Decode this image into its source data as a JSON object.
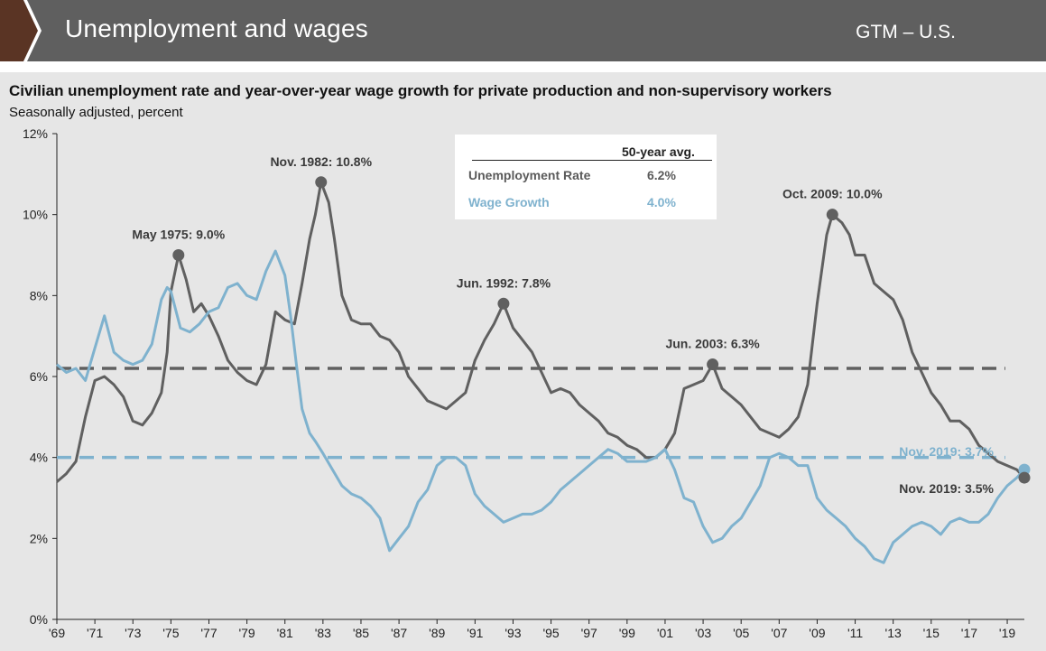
{
  "header": {
    "title": "Unemployment and wages",
    "tag": "GTM – U.S."
  },
  "colors": {
    "unemployment": "#606060",
    "wage": "#7fb2ce",
    "banner": "#5f5f5f",
    "arrow": "#5a3424",
    "panel": "#e6e6e6"
  },
  "legend": {
    "header": "50-year avg.",
    "rows": [
      {
        "label": "Unemployment Rate",
        "value": "6.2%"
      },
      {
        "label": "Wage Growth",
        "value": "4.0%"
      }
    ]
  },
  "chart_data": {
    "type": "line",
    "title": "Civilian unemployment rate and year-over-year wage growth for private production and non-supervisory workers",
    "subtitle": "Seasonally adjusted, percent",
    "xlim": [
      1969,
      2019.9
    ],
    "ylim": [
      0,
      12
    ],
    "x_ticks": [
      "'69",
      "'71",
      "'73",
      "'75",
      "'77",
      "'79",
      "'81",
      "'83",
      "'85",
      "'87",
      "'89",
      "'91",
      "'93",
      "'95",
      "'97",
      "'99",
      "'01",
      "'03",
      "'05",
      "'07",
      "'09",
      "'11",
      "'13",
      "'15",
      "'17",
      "'19"
    ],
    "y_ticks": [
      "0%",
      "2%",
      "4%",
      "6%",
      "8%",
      "10%",
      "12%"
    ],
    "grid": false,
    "reference_lines": [
      {
        "series": "Unemployment Rate",
        "value": 6.2
      },
      {
        "series": "Wage Growth",
        "value": 4.0
      }
    ],
    "series": [
      {
        "name": "Unemployment Rate",
        "points": [
          [
            1969.0,
            3.4
          ],
          [
            1969.5,
            3.6
          ],
          [
            1970.0,
            3.9
          ],
          [
            1970.5,
            5.0
          ],
          [
            1971.0,
            5.9
          ],
          [
            1971.5,
            6.0
          ],
          [
            1972.0,
            5.8
          ],
          [
            1972.5,
            5.5
          ],
          [
            1973.0,
            4.9
          ],
          [
            1973.5,
            4.8
          ],
          [
            1974.0,
            5.1
          ],
          [
            1974.5,
            5.6
          ],
          [
            1974.8,
            6.6
          ],
          [
            1975.0,
            8.1
          ],
          [
            1975.4,
            9.0
          ],
          [
            1975.8,
            8.4
          ],
          [
            1976.2,
            7.6
          ],
          [
            1976.6,
            7.8
          ],
          [
            1977.0,
            7.5
          ],
          [
            1977.5,
            7.0
          ],
          [
            1978.0,
            6.4
          ],
          [
            1978.5,
            6.1
          ],
          [
            1979.0,
            5.9
          ],
          [
            1979.5,
            5.8
          ],
          [
            1980.0,
            6.3
          ],
          [
            1980.5,
            7.6
          ],
          [
            1981.0,
            7.4
          ],
          [
            1981.5,
            7.3
          ],
          [
            1981.9,
            8.3
          ],
          [
            1982.3,
            9.4
          ],
          [
            1982.6,
            10.0
          ],
          [
            1982.9,
            10.8
          ],
          [
            1983.3,
            10.3
          ],
          [
            1983.6,
            9.4
          ],
          [
            1984.0,
            8.0
          ],
          [
            1984.5,
            7.4
          ],
          [
            1985.0,
            7.3
          ],
          [
            1985.5,
            7.3
          ],
          [
            1986.0,
            7.0
          ],
          [
            1986.5,
            6.9
          ],
          [
            1987.0,
            6.6
          ],
          [
            1987.5,
            6.0
          ],
          [
            1988.0,
            5.7
          ],
          [
            1988.5,
            5.4
          ],
          [
            1989.0,
            5.3
          ],
          [
            1989.5,
            5.2
          ],
          [
            1990.0,
            5.4
          ],
          [
            1990.5,
            5.6
          ],
          [
            1991.0,
            6.4
          ],
          [
            1991.5,
            6.9
          ],
          [
            1992.0,
            7.3
          ],
          [
            1992.5,
            7.8
          ],
          [
            1993.0,
            7.2
          ],
          [
            1993.5,
            6.9
          ],
          [
            1994.0,
            6.6
          ],
          [
            1994.5,
            6.1
          ],
          [
            1995.0,
            5.6
          ],
          [
            1995.5,
            5.7
          ],
          [
            1996.0,
            5.6
          ],
          [
            1996.5,
            5.3
          ],
          [
            1997.0,
            5.1
          ],
          [
            1997.5,
            4.9
          ],
          [
            1998.0,
            4.6
          ],
          [
            1998.5,
            4.5
          ],
          [
            1999.0,
            4.3
          ],
          [
            1999.5,
            4.2
          ],
          [
            2000.0,
            4.0
          ],
          [
            2000.5,
            4.0
          ],
          [
            2001.0,
            4.2
          ],
          [
            2001.5,
            4.6
          ],
          [
            2002.0,
            5.7
          ],
          [
            2002.5,
            5.8
          ],
          [
            2003.0,
            5.9
          ],
          [
            2003.5,
            6.3
          ],
          [
            2004.0,
            5.7
          ],
          [
            2004.5,
            5.5
          ],
          [
            2005.0,
            5.3
          ],
          [
            2005.5,
            5.0
          ],
          [
            2006.0,
            4.7
          ],
          [
            2006.5,
            4.6
          ],
          [
            2007.0,
            4.5
          ],
          [
            2007.5,
            4.7
          ],
          [
            2008.0,
            5.0
          ],
          [
            2008.5,
            5.8
          ],
          [
            2009.0,
            7.8
          ],
          [
            2009.5,
            9.5
          ],
          [
            2009.8,
            10.0
          ],
          [
            2010.3,
            9.8
          ],
          [
            2010.7,
            9.5
          ],
          [
            2011.0,
            9.0
          ],
          [
            2011.5,
            9.0
          ],
          [
            2012.0,
            8.3
          ],
          [
            2012.5,
            8.1
          ],
          [
            2013.0,
            7.9
          ],
          [
            2013.5,
            7.4
          ],
          [
            2014.0,
            6.6
          ],
          [
            2014.5,
            6.1
          ],
          [
            2015.0,
            5.6
          ],
          [
            2015.5,
            5.3
          ],
          [
            2016.0,
            4.9
          ],
          [
            2016.5,
            4.9
          ],
          [
            2017.0,
            4.7
          ],
          [
            2017.5,
            4.3
          ],
          [
            2018.0,
            4.1
          ],
          [
            2018.5,
            3.9
          ],
          [
            2019.0,
            3.8
          ],
          [
            2019.5,
            3.7
          ],
          [
            2019.9,
            3.5
          ]
        ]
      },
      {
        "name": "Wage Growth",
        "points": [
          [
            1969.0,
            6.3
          ],
          [
            1969.5,
            6.1
          ],
          [
            1970.0,
            6.2
          ],
          [
            1970.5,
            5.9
          ],
          [
            1971.0,
            6.7
          ],
          [
            1971.5,
            7.5
          ],
          [
            1972.0,
            6.6
          ],
          [
            1972.5,
            6.4
          ],
          [
            1973.0,
            6.3
          ],
          [
            1973.5,
            6.4
          ],
          [
            1974.0,
            6.8
          ],
          [
            1974.5,
            7.9
          ],
          [
            1974.8,
            8.2
          ],
          [
            1975.0,
            8.1
          ],
          [
            1975.5,
            7.2
          ],
          [
            1976.0,
            7.1
          ],
          [
            1976.5,
            7.3
          ],
          [
            1977.0,
            7.6
          ],
          [
            1977.5,
            7.7
          ],
          [
            1978.0,
            8.2
          ],
          [
            1978.5,
            8.3
          ],
          [
            1979.0,
            8.0
          ],
          [
            1979.5,
            7.9
          ],
          [
            1980.0,
            8.6
          ],
          [
            1980.5,
            9.1
          ],
          [
            1981.0,
            8.5
          ],
          [
            1981.3,
            7.5
          ],
          [
            1981.6,
            6.3
          ],
          [
            1981.9,
            5.2
          ],
          [
            1982.3,
            4.6
          ],
          [
            1982.6,
            4.4
          ],
          [
            1983.0,
            4.1
          ],
          [
            1983.5,
            3.7
          ],
          [
            1984.0,
            3.3
          ],
          [
            1984.5,
            3.1
          ],
          [
            1985.0,
            3.0
          ],
          [
            1985.5,
            2.8
          ],
          [
            1986.0,
            2.5
          ],
          [
            1986.5,
            1.7
          ],
          [
            1987.0,
            2.0
          ],
          [
            1987.5,
            2.3
          ],
          [
            1988.0,
            2.9
          ],
          [
            1988.5,
            3.2
          ],
          [
            1989.0,
            3.8
          ],
          [
            1989.5,
            4.0
          ],
          [
            1990.0,
            4.0
          ],
          [
            1990.5,
            3.8
          ],
          [
            1991.0,
            3.1
          ],
          [
            1991.5,
            2.8
          ],
          [
            1992.0,
            2.6
          ],
          [
            1992.5,
            2.4
          ],
          [
            1993.0,
            2.5
          ],
          [
            1993.5,
            2.6
          ],
          [
            1994.0,
            2.6
          ],
          [
            1994.5,
            2.7
          ],
          [
            1995.0,
            2.9
          ],
          [
            1995.5,
            3.2
          ],
          [
            1996.0,
            3.4
          ],
          [
            1996.5,
            3.6
          ],
          [
            1997.0,
            3.8
          ],
          [
            1997.5,
            4.0
          ],
          [
            1998.0,
            4.2
          ],
          [
            1998.5,
            4.1
          ],
          [
            1999.0,
            3.9
          ],
          [
            1999.5,
            3.9
          ],
          [
            2000.0,
            3.9
          ],
          [
            2000.5,
            4.0
          ],
          [
            2001.0,
            4.2
          ],
          [
            2001.5,
            3.7
          ],
          [
            2002.0,
            3.0
          ],
          [
            2002.5,
            2.9
          ],
          [
            2003.0,
            2.3
          ],
          [
            2003.5,
            1.9
          ],
          [
            2004.0,
            2.0
          ],
          [
            2004.5,
            2.3
          ],
          [
            2005.0,
            2.5
          ],
          [
            2005.5,
            2.9
          ],
          [
            2006.0,
            3.3
          ],
          [
            2006.5,
            4.0
          ],
          [
            2007.0,
            4.1
          ],
          [
            2007.5,
            4.0
          ],
          [
            2008.0,
            3.8
          ],
          [
            2008.5,
            3.8
          ],
          [
            2009.0,
            3.0
          ],
          [
            2009.5,
            2.7
          ],
          [
            2010.0,
            2.5
          ],
          [
            2010.5,
            2.3
          ],
          [
            2011.0,
            2.0
          ],
          [
            2011.5,
            1.8
          ],
          [
            2012.0,
            1.5
          ],
          [
            2012.5,
            1.4
          ],
          [
            2013.0,
            1.9
          ],
          [
            2013.5,
            2.1
          ],
          [
            2014.0,
            2.3
          ],
          [
            2014.5,
            2.4
          ],
          [
            2015.0,
            2.3
          ],
          [
            2015.5,
            2.1
          ],
          [
            2016.0,
            2.4
          ],
          [
            2016.5,
            2.5
          ],
          [
            2017.0,
            2.4
          ],
          [
            2017.5,
            2.4
          ],
          [
            2018.0,
            2.6
          ],
          [
            2018.5,
            3.0
          ],
          [
            2019.0,
            3.3
          ],
          [
            2019.5,
            3.5
          ],
          [
            2019.9,
            3.7
          ]
        ]
      }
    ],
    "annotations": [
      {
        "series": "Unemployment Rate",
        "x": 1975.4,
        "y": 9.0,
        "text": "May 1975: 9.0%"
      },
      {
        "series": "Unemployment Rate",
        "x": 1982.9,
        "y": 10.8,
        "text": "Nov. 1982: 10.8%"
      },
      {
        "series": "Unemployment Rate",
        "x": 1992.5,
        "y": 7.8,
        "text": "Jun. 1992: 7.8%"
      },
      {
        "series": "Unemployment Rate",
        "x": 2003.5,
        "y": 6.3,
        "text": "Jun. 2003: 6.3%"
      },
      {
        "series": "Unemployment Rate",
        "x": 2009.8,
        "y": 10.0,
        "text": "Oct. 2009: 10.0%"
      },
      {
        "series": "Wage Growth",
        "x": 2019.9,
        "y": 3.7,
        "text": "Nov. 2019: 3.7%"
      },
      {
        "series": "Unemployment Rate",
        "x": 2019.9,
        "y": 3.5,
        "text": "Nov. 2019: 3.5%"
      }
    ]
  }
}
